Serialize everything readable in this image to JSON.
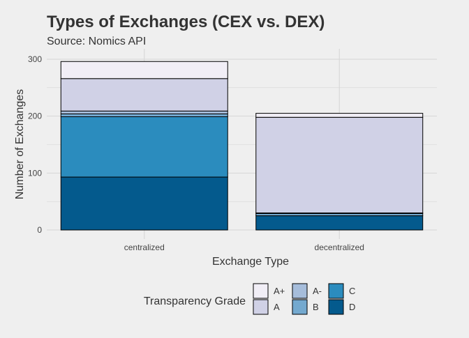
{
  "chart_data": {
    "type": "bar",
    "stacked": true,
    "title": "Types of Exchanges (CEX vs. DEX)",
    "subtitle": "Source: Nomics API",
    "xlabel": "Exchange Type",
    "ylabel": "Number of Exchanges",
    "categories": [
      "centralized",
      "decentralized"
    ],
    "ylim": [
      0,
      310
    ],
    "yticks": [
      0,
      100,
      200,
      300
    ],
    "grid": true,
    "legend": {
      "title": "Transparency Grade",
      "position": "bottom",
      "order": [
        "A+",
        "A",
        "A-",
        "B",
        "C",
        "D"
      ]
    },
    "series": [
      {
        "name": "D",
        "color": "#045a8d",
        "values": [
          93,
          25
        ]
      },
      {
        "name": "C",
        "color": "#2b8cbe",
        "values": [
          106,
          0
        ]
      },
      {
        "name": "B",
        "color": "#74a9cf",
        "values": [
          5,
          4
        ]
      },
      {
        "name": "A-",
        "color": "#a6bddb",
        "values": [
          5,
          1
        ]
      },
      {
        "name": "A",
        "color": "#d0d1e6",
        "values": [
          57,
          168
        ]
      },
      {
        "name": "A+",
        "color": "#f1eef6",
        "values": [
          30,
          7
        ]
      }
    ]
  }
}
